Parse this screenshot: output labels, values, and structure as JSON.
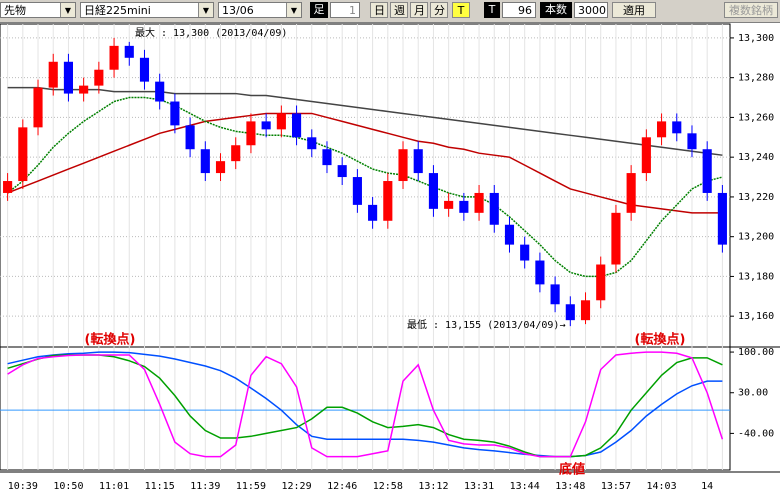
{
  "toolbar": {
    "market": "先物",
    "symbol": "日経225mini",
    "contract": "13/06",
    "bar_label": "足",
    "bar_size": "1",
    "day": "日",
    "week": "週",
    "month": "月",
    "minute": "分",
    "tick": "T",
    "t_label": "T",
    "t_value": "96",
    "count_label": "本数",
    "count_value": "3000",
    "apply": "適用",
    "multi": "複数銘柄"
  },
  "chart_data": [
    {
      "type": "candlestick",
      "categories": [
        null,
        "10:39",
        null,
        null,
        "10:50",
        null,
        null,
        "11:01",
        null,
        null,
        "11:15",
        null,
        null,
        "11:39",
        null,
        null,
        "11:59",
        null,
        null,
        "12:29",
        null,
        null,
        "12:46",
        null,
        null,
        "12:58",
        null,
        null,
        "13:12",
        null,
        null,
        "13:31",
        null,
        null,
        "13:44",
        null,
        null,
        "13:48",
        null,
        null,
        "13:57",
        null,
        null,
        "14:03",
        null,
        null,
        "14",
        null
      ],
      "open": [
        13222,
        13228,
        13255,
        13275,
        13288,
        13272,
        13276,
        13284,
        13296,
        13290,
        13278,
        13268,
        13256,
        13244,
        13232,
        13238,
        13246,
        13258,
        13254,
        13262,
        13250,
        13244,
        13236,
        13230,
        13216,
        13208,
        13228,
        13244,
        13232,
        13214,
        13218,
        13212,
        13222,
        13206,
        13196,
        13188,
        13176,
        13166,
        13158,
        13168,
        13186,
        13212,
        13232,
        13250,
        13258,
        13252,
        13244,
        13222
      ],
      "high": [
        13232,
        13259,
        13279,
        13292,
        13292,
        13280,
        13288,
        13300,
        13298,
        13294,
        13282,
        13272,
        13260,
        13248,
        13242,
        13250,
        13262,
        13262,
        13266,
        13266,
        13254,
        13248,
        13240,
        13234,
        13220,
        13232,
        13248,
        13248,
        13236,
        13222,
        13222,
        13226,
        13226,
        13210,
        13200,
        13192,
        13180,
        13170,
        13172,
        13190,
        13216,
        13236,
        13254,
        13262,
        13262,
        13256,
        13248,
        13226
      ],
      "low": [
        13218,
        13224,
        13251,
        13271,
        13268,
        13268,
        13272,
        13280,
        13286,
        13274,
        13264,
        13252,
        13240,
        13228,
        13228,
        13234,
        13242,
        13250,
        13250,
        13246,
        13240,
        13232,
        13226,
        13212,
        13204,
        13204,
        13224,
        13228,
        13210,
        13210,
        13208,
        13208,
        13202,
        13192,
        13184,
        13172,
        13162,
        13155,
        13156,
        13164,
        13182,
        13208,
        13228,
        13246,
        13248,
        13240,
        13218,
        13192
      ],
      "close": [
        13228,
        13255,
        13275,
        13288,
        13272,
        13276,
        13284,
        13296,
        13290,
        13278,
        13268,
        13256,
        13244,
        13232,
        13238,
        13246,
        13258,
        13254,
        13262,
        13250,
        13244,
        13236,
        13230,
        13216,
        13208,
        13228,
        13244,
        13232,
        13214,
        13218,
        13212,
        13222,
        13206,
        13196,
        13188,
        13176,
        13166,
        13158,
        13168,
        13186,
        13212,
        13232,
        13250,
        13258,
        13252,
        13244,
        13222,
        13196
      ],
      "up_color": "#ff0000",
      "down_color": "#0000ff",
      "series": [
        {
          "color": "#444444",
          "values": [
            13275,
            13275,
            13275,
            13274,
            13274,
            13274,
            13274,
            13273,
            13273,
            13273,
            13273,
            13272,
            13272,
            13272,
            13272,
            13272,
            13271,
            13271,
            13270,
            13269,
            13268,
            13267,
            13266,
            13265,
            13264,
            13263,
            13262,
            13261,
            13260,
            13259,
            13258,
            13257,
            13256,
            13255,
            13254,
            13253,
            13252,
            13251,
            13250,
            13249,
            13248,
            13247,
            13246,
            13245,
            13244,
            13243,
            13242,
            13241
          ]
        },
        {
          "color": "#c00000",
          "values": [
            13222,
            13225,
            13228,
            13231,
            13234,
            13237,
            13240,
            13243,
            13246,
            13249,
            13252,
            13254,
            13256,
            13258,
            13259,
            13260,
            13261,
            13262,
            13262,
            13262,
            13262,
            13260,
            13258,
            13256,
            13254,
            13252,
            13250,
            13248,
            13247,
            13245,
            13244,
            13242,
            13241,
            13240,
            13236,
            13232,
            13228,
            13224,
            13222,
            13220,
            13218,
            13216,
            13215,
            13214,
            13213,
            13212,
            13212,
            13212
          ]
        },
        {
          "color": "#008000",
          "values": [
            13222,
            13228,
            13236,
            13245,
            13252,
            13258,
            13263,
            13268,
            13270,
            13270,
            13269,
            13266,
            13262,
            13258,
            13255,
            13253,
            13252,
            13251,
            13251,
            13250,
            13248,
            13245,
            13242,
            13238,
            13234,
            13232,
            13231,
            13228,
            13225,
            13222,
            13220,
            13220,
            13216,
            13210,
            13203,
            13196,
            13188,
            13182,
            13180,
            13180,
            13182,
            13188,
            13198,
            13208,
            13216,
            13224,
            13228,
            13230
          ]
        }
      ],
      "ylim": [
        13145,
        13307
      ],
      "yticks": [
        {
          "value": 13160,
          "label": "13,160"
        },
        {
          "value": 13180,
          "label": "13,180"
        },
        {
          "value": 13200,
          "label": "13,200"
        },
        {
          "value": 13220,
          "label": "13,220"
        },
        {
          "value": 13240,
          "label": "13,240"
        },
        {
          "value": 13260,
          "label": "13,260"
        },
        {
          "value": 13280,
          "label": "13,280"
        },
        {
          "value": 13300,
          "label": "13,300"
        }
      ],
      "grid": true,
      "annotations": [
        "最大 : 13,300 (2013/04/09)",
        "最低 : 13,155 (2013/04/09)→",
        "(転換点)",
        "(転換点)",
        "底値"
      ]
    },
    {
      "type": "line",
      "series": [
        {
          "color": "#0050ff",
          "values": [
            80,
            86,
            92,
            95,
            97,
            98,
            100,
            100,
            99,
            96,
            93,
            88,
            82,
            76,
            68,
            55,
            38,
            20,
            0,
            -25,
            -45,
            -50,
            -50,
            -50,
            -50,
            -50,
            -50,
            -52,
            -55,
            -60,
            -65,
            -68,
            -70,
            -73,
            -76,
            -78,
            -80,
            -80,
            -78,
            -72,
            -55,
            -35,
            -10,
            10,
            28,
            42,
            50,
            50
          ]
        },
        {
          "color": "#00a000",
          "values": [
            72,
            80,
            88,
            94,
            95,
            95,
            95,
            92,
            85,
            75,
            55,
            25,
            -10,
            -35,
            -48,
            -48,
            -45,
            -40,
            -35,
            -30,
            -15,
            5,
            5,
            -5,
            -20,
            -30,
            -28,
            -25,
            -30,
            -42,
            -50,
            -52,
            -55,
            -62,
            -72,
            -80,
            -80,
            -80,
            -78,
            -65,
            -40,
            0,
            30,
            60,
            82,
            90,
            90,
            78
          ]
        },
        {
          "color": "#ff00ff",
          "values": [
            62,
            78,
            89,
            92,
            94,
            95,
            95,
            95,
            95,
            70,
            10,
            -55,
            -75,
            -80,
            -80,
            -60,
            60,
            92,
            80,
            40,
            -65,
            -80,
            -80,
            -80,
            -75,
            -70,
            50,
            78,
            0,
            -52,
            -58,
            -60,
            -60,
            -65,
            -75,
            -80,
            -80,
            -80,
            -20,
            70,
            95,
            98,
            100,
            100,
            98,
            90,
            30,
            -50
          ]
        }
      ],
      "ylim": [
        -103,
        107
      ],
      "yticks": [
        {
          "value": -40,
          "label": "-40.00"
        },
        {
          "value": 30,
          "label": "30.00"
        },
        {
          "value": 100,
          "label": "100.00"
        }
      ],
      "hline": 0,
      "hline_color": "#3399ff"
    }
  ]
}
